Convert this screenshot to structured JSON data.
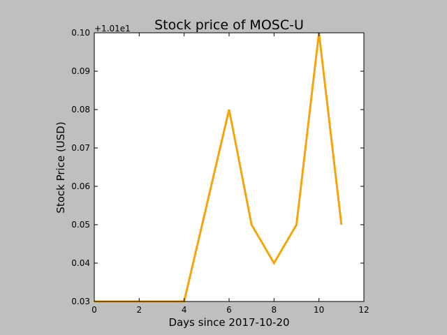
{
  "chart_data": {
    "type": "line",
    "title": "Stock price of MOSC-U",
    "xlabel": "Days since 2017-10-20",
    "ylabel": "Stock Price (USD)",
    "offset_text": "+1.01e1",
    "xlim": [
      0,
      12
    ],
    "ylim": [
      0.03,
      0.1
    ],
    "xticks": [
      0,
      2,
      4,
      6,
      8,
      10,
      12
    ],
    "xtick_labels": [
      "0",
      "2",
      "4",
      "6",
      "8",
      "10",
      "12"
    ],
    "yticks": [
      0.03,
      0.04,
      0.05,
      0.06,
      0.07,
      0.08,
      0.09,
      0.1
    ],
    "ytick_labels": [
      "0.03",
      "0.04",
      "0.05",
      "0.06",
      "0.07",
      "0.08",
      "0.09",
      "0.10"
    ],
    "grid": false,
    "series": [
      {
        "color": "#f5a40b",
        "x": [
          0,
          1,
          2,
          3,
          4,
          5,
          6,
          7,
          8,
          9,
          10,
          11
        ],
        "y": [
          0.03,
          0.03,
          0.03,
          0.03,
          0.03,
          0.055,
          0.08,
          0.05,
          0.04,
          0.05,
          0.1,
          0.05
        ]
      }
    ]
  }
}
